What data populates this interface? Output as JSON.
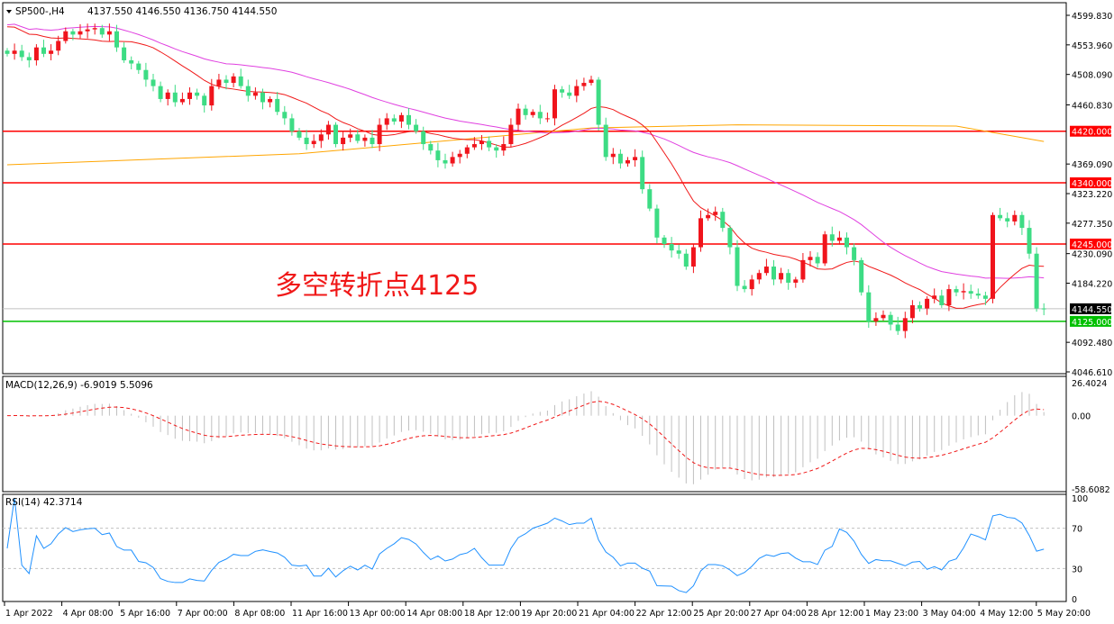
{
  "header": {
    "symbol": "SP500-,H4",
    "ohlc": "4137.550 4146.550 4136.750 4144.550"
  },
  "annotation": "多空转折点4125",
  "colors": {
    "up": "#f0141c",
    "down": "#3ddc84",
    "ma_fast": "#f01818",
    "ma_mid": "#e040e0",
    "ma_slow": "#ffa500",
    "macd_hist": "#c0c0c0",
    "macd_signal": "#f01818",
    "rsi": "#1e90ff",
    "support": "#00c000",
    "resistance": "#ff0000"
  },
  "chart_data": [
    {
      "type": "candlestick",
      "title": "SP500-,H4",
      "ylim": [
        4046.61,
        4599.83
      ],
      "y_ticks": [
        "4599.830",
        "4553.960",
        "4508.090",
        "4460.830",
        "4369.090",
        "4323.220",
        "4277.350",
        "4230.090",
        "4184.220",
        "4092.480",
        "4046.610"
      ],
      "x_tick_labels": [
        "1 Apr 2022",
        "4 Apr 08:00",
        "5 Apr 16:00",
        "7 Apr 00:00",
        "8 Apr 08:00",
        "11 Apr 16:00",
        "13 Apr 00:00",
        "14 Apr 08:00",
        "18 Apr 12:00",
        "19 Apr 20:00",
        "21 Apr 04:00",
        "22 Apr 12:00",
        "25 Apr 20:00",
        "27 Apr 04:00",
        "28 Apr 12:00",
        "1 May 23:00",
        "3 May 04:00",
        "4 May 12:00",
        "5 May 20:00"
      ],
      "closes": [
        4540,
        4545,
        4535,
        4530,
        4550,
        4540,
        4545,
        4560,
        4575,
        4570,
        4575,
        4578,
        4580,
        4570,
        4575,
        4550,
        4530,
        4525,
        4515,
        4500,
        4490,
        4470,
        4480,
        4465,
        4470,
        4480,
        4475,
        4460,
        4490,
        4500,
        4495,
        4505,
        4490,
        4475,
        4480,
        4465,
        4470,
        4450,
        4440,
        4420,
        4410,
        4400,
        4405,
        4415,
        4430,
        4400,
        4410,
        4415,
        4405,
        4410,
        4400,
        4430,
        4440,
        4435,
        4445,
        4430,
        4420,
        4400,
        4390,
        4375,
        4370,
        4380,
        4385,
        4395,
        4400,
        4405,
        4395,
        4390,
        4400,
        4430,
        4455,
        4445,
        4450,
        4440,
        4440,
        4485,
        4480,
        4475,
        4490,
        4495,
        4500,
        4430,
        4380,
        4385,
        4370,
        4375,
        4380,
        4330,
        4300,
        4255,
        4245,
        4235,
        4230,
        4210,
        4240,
        4285,
        4290,
        4295,
        4270,
        4240,
        4180,
        4175,
        4190,
        4200,
        4210,
        4190,
        4200,
        4185,
        4190,
        4220,
        4225,
        4215,
        4260,
        4250,
        4255,
        4240,
        4220,
        4170,
        4125,
        4130,
        4135,
        4120,
        4110,
        4130,
        4150,
        4145,
        4160,
        4165,
        4150,
        4175,
        4170,
        4172,
        4168,
        4165,
        4160,
        4290,
        4285,
        4280,
        4290,
        4270,
        4230,
        4145,
        4144.55
      ],
      "ma_slow": [
        [
          0,
          4368
        ],
        [
          40,
          4385
        ],
        [
          80,
          4425
        ],
        [
          100,
          4430
        ],
        [
          130,
          4428
        ],
        [
          142,
          4404
        ]
      ],
      "levels": [
        {
          "value": 4420,
          "label": "4420.000",
          "kind": "resistance"
        },
        {
          "value": 4340,
          "label": "4340.000",
          "kind": "resistance"
        },
        {
          "value": 4245,
          "label": "4245.000",
          "kind": "resistance"
        },
        {
          "value": 4125,
          "label": "4125.000",
          "kind": "support"
        }
      ],
      "current_price": {
        "value": 4144.55,
        "label": "4144.550"
      }
    },
    {
      "type": "bar+line",
      "title": "MACD(12,26,9) -6.9019 5.5096",
      "ylim": [
        -58.6082,
        26.4024
      ],
      "y_ticks": [
        "26.4024",
        "0.00",
        "-58.6082"
      ]
    },
    {
      "type": "line",
      "title": "RSI(14) 42.3714",
      "ylim": [
        0,
        100
      ],
      "y_ticks": [
        "100",
        "70",
        "30",
        "0"
      ],
      "levels": [
        70,
        30
      ]
    }
  ]
}
